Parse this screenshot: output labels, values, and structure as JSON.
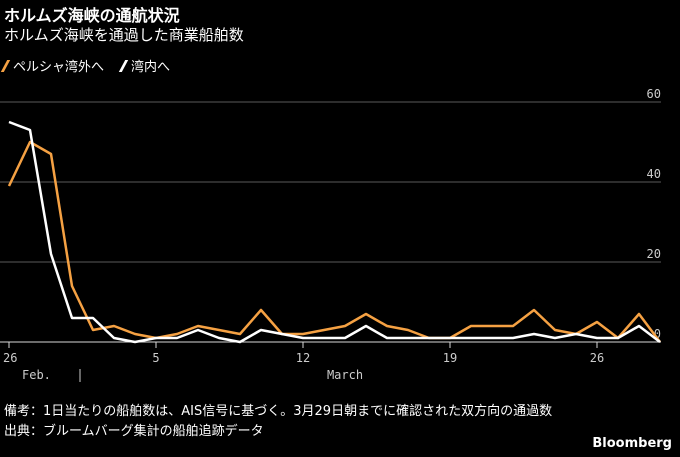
{
  "title": "ホルムズ海峡の通航状況",
  "subtitle": "ホルムズ海峡を通過した商業船舶数",
  "legend": {
    "items": [
      {
        "label": "ペルシャ湾外へ",
        "color": "#f5a143"
      },
      {
        "label": "湾内へ",
        "color": "#ffffff"
      }
    ]
  },
  "notes": {
    "note": "備考：1日当たりの船舶数は、AIS信号に基づく。3月29日朝までに確認された双方向の通過数",
    "source": "出典：ブルームバーグ集計の船舶追跡データ"
  },
  "logo": "Bloomberg",
  "chart_data": {
    "type": "line",
    "x": [
      26,
      27,
      28,
      1,
      2,
      3,
      4,
      5,
      6,
      7,
      8,
      9,
      10,
      11,
      12,
      13,
      14,
      15,
      16,
      17,
      18,
      19,
      20,
      21,
      22,
      23,
      24,
      25,
      26,
      27,
      28,
      29
    ],
    "x_tick_labels": [
      {
        "day_index": 0,
        "label": "26"
      },
      {
        "day_index": 7,
        "label": "5"
      },
      {
        "day_index": 14,
        "label": "12"
      },
      {
        "day_index": 21,
        "label": "19"
      },
      {
        "day_index": 28,
        "label": "26"
      }
    ],
    "x_period_labels": [
      {
        "day_index": 0,
        "label": "Feb."
      },
      {
        "day_index": 16,
        "label": "March"
      }
    ],
    "period_separator_day_index": 3,
    "y_ticks": [
      0,
      20,
      40,
      60
    ],
    "ylim": [
      0,
      60
    ],
    "grid": true,
    "legend_position": "top-left",
    "series": [
      {
        "name": "ペルシャ湾外へ",
        "color": "#f5a143",
        "values": [
          39,
          50,
          47,
          14,
          3,
          4,
          2,
          1,
          2,
          4,
          3,
          2,
          8,
          2,
          2,
          3,
          4,
          7,
          4,
          3,
          1,
          1,
          4,
          4,
          4,
          8,
          3,
          2,
          5,
          1,
          7,
          0
        ]
      },
      {
        "name": "湾内へ",
        "color": "#ffffff",
        "values": [
          55,
          53,
          22,
          6,
          6,
          1,
          0,
          1,
          1,
          3,
          1,
          0,
          3,
          2,
          1,
          1,
          1,
          4,
          1,
          1,
          1,
          1,
          1,
          1,
          1,
          2,
          1,
          2,
          1,
          1,
          4,
          0
        ]
      }
    ]
  }
}
